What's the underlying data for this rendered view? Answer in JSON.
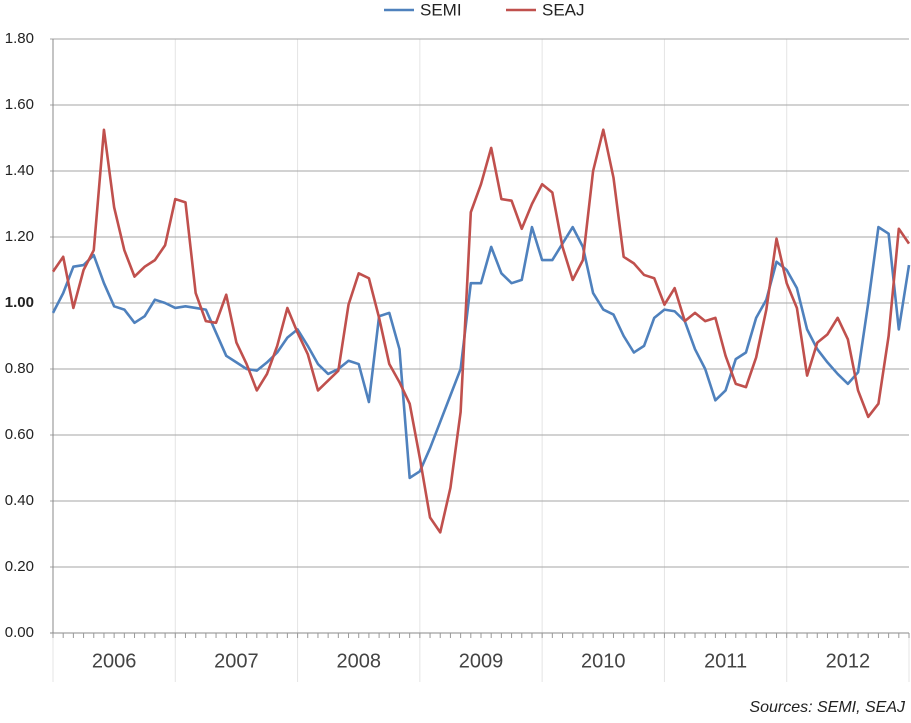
{
  "chart_data": {
    "type": "line",
    "categories": [
      "2006",
      null,
      null,
      null,
      null,
      null,
      null,
      null,
      null,
      null,
      null,
      null,
      "2007",
      null,
      null,
      null,
      null,
      null,
      null,
      null,
      null,
      null,
      null,
      null,
      "2008",
      null,
      null,
      null,
      null,
      null,
      null,
      null,
      null,
      null,
      null,
      null,
      "2009",
      null,
      null,
      null,
      null,
      null,
      null,
      null,
      null,
      null,
      null,
      null,
      "2010",
      null,
      null,
      null,
      null,
      null,
      null,
      null,
      null,
      null,
      null,
      null,
      "2011",
      null,
      null,
      null,
      null,
      null,
      null,
      null,
      null,
      null,
      null,
      null,
      "2012",
      null,
      null,
      null,
      null,
      null,
      null,
      null,
      null,
      null,
      null,
      null,
      null
    ],
    "series": [
      {
        "name": "SEMI",
        "color": "#4f81bd",
        "values": [
          0.97,
          1.03,
          1.11,
          1.115,
          1.145,
          1.06,
          0.99,
          0.98,
          0.94,
          0.96,
          1.01,
          1.0,
          0.985,
          0.99,
          0.985,
          0.98,
          0.91,
          0.84,
          0.82,
          0.8,
          0.795,
          0.82,
          0.85,
          0.895,
          0.92,
          0.87,
          0.815,
          0.785,
          0.8,
          0.825,
          0.815,
          0.7,
          0.96,
          0.97,
          0.86,
          0.47,
          0.49,
          0.56,
          0.64,
          0.72,
          0.8,
          1.06,
          1.06,
          1.17,
          1.09,
          1.06,
          1.07,
          1.23,
          1.13,
          1.13,
          1.18,
          1.23,
          1.17,
          1.03,
          0.98,
          0.965,
          0.9,
          0.85,
          0.87,
          0.955,
          0.98,
          0.975,
          0.945,
          0.86,
          0.8,
          0.705,
          0.735,
          0.83,
          0.85,
          0.955,
          1.01,
          1.125,
          1.1,
          1.045,
          0.92,
          0.86,
          0.82,
          0.785,
          0.755,
          0.79,
          1.0,
          1.23,
          1.21,
          0.92,
          1.115
        ]
      },
      {
        "name": "SEAJ",
        "color": "#c0504d",
        "values": [
          1.095,
          1.14,
          0.985,
          1.1,
          1.16,
          1.525,
          1.29,
          1.16,
          1.08,
          1.11,
          1.13,
          1.175,
          1.315,
          1.305,
          1.03,
          0.945,
          0.94,
          1.025,
          0.88,
          0.815,
          0.735,
          0.785,
          0.87,
          0.985,
          0.91,
          0.845,
          0.735,
          0.765,
          0.795,
          0.995,
          1.09,
          1.075,
          0.955,
          0.815,
          0.76,
          0.695,
          0.53,
          0.35,
          0.305,
          0.44,
          0.67,
          1.275,
          1.36,
          1.47,
          1.315,
          1.31,
          1.225,
          1.3,
          1.36,
          1.335,
          1.17,
          1.07,
          1.13,
          1.4,
          1.525,
          1.38,
          1.14,
          1.12,
          1.085,
          1.075,
          0.995,
          1.045,
          0.945,
          0.97,
          0.945,
          0.955,
          0.84,
          0.755,
          0.745,
          0.835,
          0.98,
          1.195,
          1.06,
          0.985,
          0.78,
          0.88,
          0.905,
          0.955,
          0.89,
          0.735,
          0.655,
          0.695,
          0.9,
          1.225,
          1.18
        ]
      }
    ],
    "ylim": [
      0,
      1.8
    ],
    "yticks": [
      {
        "value": 0,
        "label": "0.00"
      },
      {
        "value": 0.2,
        "label": "0.20"
      },
      {
        "value": 0.4,
        "label": "0.40"
      },
      {
        "value": 0.6,
        "label": "0.60"
      },
      {
        "value": 0.8,
        "label": "0.80"
      },
      {
        "value": 1,
        "label": "1.00",
        "bold": true
      },
      {
        "value": 1.2,
        "label": "1.20"
      },
      {
        "value": 1.4,
        "label": "1.40"
      },
      {
        "value": 1.6,
        "label": "1.60"
      },
      {
        "value": 1.8,
        "label": "1.80"
      }
    ],
    "grid": true,
    "legend": "top",
    "source": "Sources: SEMI, SEAJ"
  }
}
